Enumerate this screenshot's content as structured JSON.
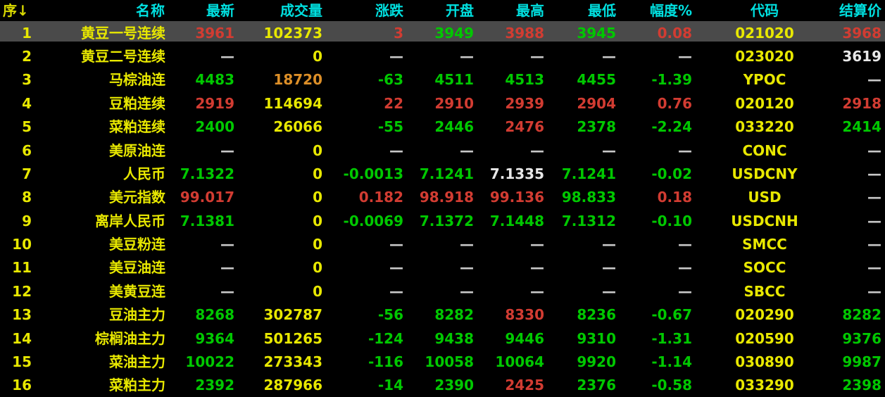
{
  "colors": {
    "background": "#000000",
    "header_text": "#00dfdf",
    "seq_header_text": "#d9d900",
    "selected_row_bg": "#4a4a4a",
    "y": "#e8e800",
    "r": "#d23c32",
    "g": "#00c800",
    "w": "#e8e8e8",
    "o": "#dd8f28",
    "d": "#c8c8c8"
  },
  "table": {
    "columns": [
      {
        "key": "seq",
        "label": "序↓"
      },
      {
        "key": "name",
        "label": "名称"
      },
      {
        "key": "latest",
        "label": "最新"
      },
      {
        "key": "volume",
        "label": "成交量"
      },
      {
        "key": "change",
        "label": "涨跌"
      },
      {
        "key": "open",
        "label": "开盘"
      },
      {
        "key": "high",
        "label": "最高"
      },
      {
        "key": "low",
        "label": "最低"
      },
      {
        "key": "range_pct",
        "label": "幅度%"
      },
      {
        "key": "code",
        "label": "代码"
      },
      {
        "key": "settle",
        "label": "结算价"
      }
    ],
    "rows": [
      {
        "selected": true,
        "cells": [
          {
            "v": "1",
            "c": "y"
          },
          {
            "v": "黄豆一号连续",
            "c": "y"
          },
          {
            "v": "3961",
            "c": "r"
          },
          {
            "v": "102373",
            "c": "y"
          },
          {
            "v": "3",
            "c": "r"
          },
          {
            "v": "3949",
            "c": "g"
          },
          {
            "v": "3988",
            "c": "r"
          },
          {
            "v": "3945",
            "c": "g"
          },
          {
            "v": "0.08",
            "c": "r"
          },
          {
            "v": "021020",
            "c": "y"
          },
          {
            "v": "3968",
            "c": "r"
          }
        ]
      },
      {
        "selected": false,
        "cells": [
          {
            "v": "2",
            "c": "y"
          },
          {
            "v": "黄豆二号连续",
            "c": "y"
          },
          {
            "v": "—",
            "c": "d"
          },
          {
            "v": "0",
            "c": "y"
          },
          {
            "v": "—",
            "c": "d"
          },
          {
            "v": "—",
            "c": "d"
          },
          {
            "v": "—",
            "c": "d"
          },
          {
            "v": "—",
            "c": "d"
          },
          {
            "v": "—",
            "c": "d"
          },
          {
            "v": "023020",
            "c": "y"
          },
          {
            "v": "3619",
            "c": "w"
          }
        ]
      },
      {
        "selected": false,
        "cells": [
          {
            "v": "3",
            "c": "y"
          },
          {
            "v": "马棕油连",
            "c": "y"
          },
          {
            "v": "4483",
            "c": "g"
          },
          {
            "v": "18720",
            "c": "o"
          },
          {
            "v": "-63",
            "c": "g"
          },
          {
            "v": "4511",
            "c": "g"
          },
          {
            "v": "4513",
            "c": "g"
          },
          {
            "v": "4455",
            "c": "g"
          },
          {
            "v": "-1.39",
            "c": "g"
          },
          {
            "v": "YPOC",
            "c": "y"
          },
          {
            "v": "—",
            "c": "d"
          }
        ]
      },
      {
        "selected": false,
        "cells": [
          {
            "v": "4",
            "c": "y"
          },
          {
            "v": "豆粕连续",
            "c": "y"
          },
          {
            "v": "2919",
            "c": "r"
          },
          {
            "v": "114694",
            "c": "y"
          },
          {
            "v": "22",
            "c": "r"
          },
          {
            "v": "2910",
            "c": "r"
          },
          {
            "v": "2939",
            "c": "r"
          },
          {
            "v": "2904",
            "c": "r"
          },
          {
            "v": "0.76",
            "c": "r"
          },
          {
            "v": "020120",
            "c": "y"
          },
          {
            "v": "2918",
            "c": "r"
          }
        ]
      },
      {
        "selected": false,
        "cells": [
          {
            "v": "5",
            "c": "y"
          },
          {
            "v": "菜粕连续",
            "c": "y"
          },
          {
            "v": "2400",
            "c": "g"
          },
          {
            "v": "26066",
            "c": "y"
          },
          {
            "v": "-55",
            "c": "g"
          },
          {
            "v": "2446",
            "c": "g"
          },
          {
            "v": "2476",
            "c": "r"
          },
          {
            "v": "2378",
            "c": "g"
          },
          {
            "v": "-2.24",
            "c": "g"
          },
          {
            "v": "033220",
            "c": "y"
          },
          {
            "v": "2414",
            "c": "g"
          }
        ]
      },
      {
        "selected": false,
        "cells": [
          {
            "v": "6",
            "c": "y"
          },
          {
            "v": "美原油连",
            "c": "y"
          },
          {
            "v": "—",
            "c": "d"
          },
          {
            "v": "0",
            "c": "y"
          },
          {
            "v": "—",
            "c": "d"
          },
          {
            "v": "—",
            "c": "d"
          },
          {
            "v": "—",
            "c": "d"
          },
          {
            "v": "—",
            "c": "d"
          },
          {
            "v": "—",
            "c": "d"
          },
          {
            "v": "CONC",
            "c": "y"
          },
          {
            "v": "—",
            "c": "d"
          }
        ]
      },
      {
        "selected": false,
        "cells": [
          {
            "v": "7",
            "c": "y"
          },
          {
            "v": "人民币",
            "c": "y"
          },
          {
            "v": "7.1322",
            "c": "g"
          },
          {
            "v": "0",
            "c": "y"
          },
          {
            "v": "-0.0013",
            "c": "g"
          },
          {
            "v": "7.1241",
            "c": "g"
          },
          {
            "v": "7.1335",
            "c": "w"
          },
          {
            "v": "7.1241",
            "c": "g"
          },
          {
            "v": "-0.02",
            "c": "g"
          },
          {
            "v": "USDCNY",
            "c": "y"
          },
          {
            "v": "—",
            "c": "d"
          }
        ]
      },
      {
        "selected": false,
        "cells": [
          {
            "v": "8",
            "c": "y"
          },
          {
            "v": "美元指数",
            "c": "y"
          },
          {
            "v": "99.017",
            "c": "r"
          },
          {
            "v": "0",
            "c": "y"
          },
          {
            "v": "0.182",
            "c": "r"
          },
          {
            "v": "98.918",
            "c": "r"
          },
          {
            "v": "99.136",
            "c": "r"
          },
          {
            "v": "98.833",
            "c": "g"
          },
          {
            "v": "0.18",
            "c": "r"
          },
          {
            "v": "USD",
            "c": "y"
          },
          {
            "v": "—",
            "c": "d"
          }
        ]
      },
      {
        "selected": false,
        "cells": [
          {
            "v": "9",
            "c": "y"
          },
          {
            "v": "离岸人民币",
            "c": "y"
          },
          {
            "v": "7.1381",
            "c": "g"
          },
          {
            "v": "0",
            "c": "y"
          },
          {
            "v": "-0.0069",
            "c": "g"
          },
          {
            "v": "7.1372",
            "c": "g"
          },
          {
            "v": "7.1448",
            "c": "g"
          },
          {
            "v": "7.1312",
            "c": "g"
          },
          {
            "v": "-0.10",
            "c": "g"
          },
          {
            "v": "USDCNH",
            "c": "y"
          },
          {
            "v": "—",
            "c": "d"
          }
        ]
      },
      {
        "selected": false,
        "cells": [
          {
            "v": "10",
            "c": "y"
          },
          {
            "v": "美豆粉连",
            "c": "y"
          },
          {
            "v": "—",
            "c": "d"
          },
          {
            "v": "0",
            "c": "y"
          },
          {
            "v": "—",
            "c": "d"
          },
          {
            "v": "—",
            "c": "d"
          },
          {
            "v": "—",
            "c": "d"
          },
          {
            "v": "—",
            "c": "d"
          },
          {
            "v": "—",
            "c": "d"
          },
          {
            "v": "SMCC",
            "c": "y"
          },
          {
            "v": "—",
            "c": "d"
          }
        ]
      },
      {
        "selected": false,
        "cells": [
          {
            "v": "11",
            "c": "y"
          },
          {
            "v": "美豆油连",
            "c": "y"
          },
          {
            "v": "—",
            "c": "d"
          },
          {
            "v": "0",
            "c": "y"
          },
          {
            "v": "—",
            "c": "d"
          },
          {
            "v": "—",
            "c": "d"
          },
          {
            "v": "—",
            "c": "d"
          },
          {
            "v": "—",
            "c": "d"
          },
          {
            "v": "—",
            "c": "d"
          },
          {
            "v": "SOCC",
            "c": "y"
          },
          {
            "v": "—",
            "c": "d"
          }
        ]
      },
      {
        "selected": false,
        "cells": [
          {
            "v": "12",
            "c": "y"
          },
          {
            "v": "美黄豆连",
            "c": "y"
          },
          {
            "v": "—",
            "c": "d"
          },
          {
            "v": "0",
            "c": "y"
          },
          {
            "v": "—",
            "c": "d"
          },
          {
            "v": "—",
            "c": "d"
          },
          {
            "v": "—",
            "c": "d"
          },
          {
            "v": "—",
            "c": "d"
          },
          {
            "v": "—",
            "c": "d"
          },
          {
            "v": "SBCC",
            "c": "y"
          },
          {
            "v": "—",
            "c": "d"
          }
        ]
      },
      {
        "selected": false,
        "cells": [
          {
            "v": "13",
            "c": "y"
          },
          {
            "v": "豆油主力",
            "c": "y"
          },
          {
            "v": "8268",
            "c": "g"
          },
          {
            "v": "302787",
            "c": "y"
          },
          {
            "v": "-56",
            "c": "g"
          },
          {
            "v": "8282",
            "c": "g"
          },
          {
            "v": "8330",
            "c": "r"
          },
          {
            "v": "8236",
            "c": "g"
          },
          {
            "v": "-0.67",
            "c": "g"
          },
          {
            "v": "020290",
            "c": "y"
          },
          {
            "v": "8282",
            "c": "g"
          }
        ]
      },
      {
        "selected": false,
        "cells": [
          {
            "v": "14",
            "c": "y"
          },
          {
            "v": "棕榈油主力",
            "c": "y"
          },
          {
            "v": "9364",
            "c": "g"
          },
          {
            "v": "501265",
            "c": "y"
          },
          {
            "v": "-124",
            "c": "g"
          },
          {
            "v": "9438",
            "c": "g"
          },
          {
            "v": "9446",
            "c": "g"
          },
          {
            "v": "9310",
            "c": "g"
          },
          {
            "v": "-1.31",
            "c": "g"
          },
          {
            "v": "020590",
            "c": "y"
          },
          {
            "v": "9376",
            "c": "g"
          }
        ]
      },
      {
        "selected": false,
        "cells": [
          {
            "v": "15",
            "c": "y"
          },
          {
            "v": "菜油主力",
            "c": "y"
          },
          {
            "v": "10022",
            "c": "g"
          },
          {
            "v": "273343",
            "c": "y"
          },
          {
            "v": "-116",
            "c": "g"
          },
          {
            "v": "10058",
            "c": "g"
          },
          {
            "v": "10064",
            "c": "g"
          },
          {
            "v": "9920",
            "c": "g"
          },
          {
            "v": "-1.14",
            "c": "g"
          },
          {
            "v": "030890",
            "c": "y"
          },
          {
            "v": "9987",
            "c": "g"
          }
        ]
      },
      {
        "selected": false,
        "cells": [
          {
            "v": "16",
            "c": "y"
          },
          {
            "v": "菜粕主力",
            "c": "y"
          },
          {
            "v": "2392",
            "c": "g"
          },
          {
            "v": "287966",
            "c": "y"
          },
          {
            "v": "-14",
            "c": "g"
          },
          {
            "v": "2390",
            "c": "g"
          },
          {
            "v": "2425",
            "c": "r"
          },
          {
            "v": "2376",
            "c": "g"
          },
          {
            "v": "-0.58",
            "c": "g"
          },
          {
            "v": "033290",
            "c": "y"
          },
          {
            "v": "2398",
            "c": "g"
          }
        ]
      }
    ]
  }
}
